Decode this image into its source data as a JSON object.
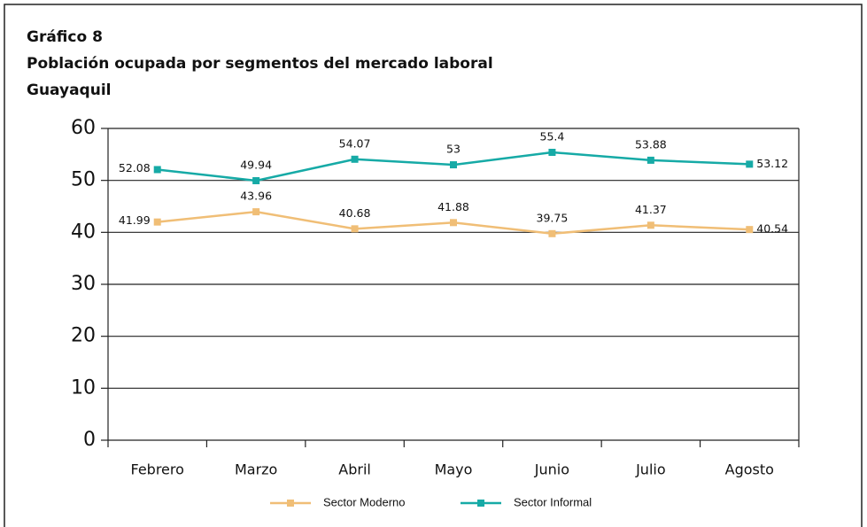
{
  "chart_data": {
    "type": "line",
    "title": [
      "Gráfico 8",
      "Población ocupada por segmentos del mercado laboral",
      "Guayaquil"
    ],
    "categories": [
      "Febrero",
      "Marzo",
      "Abril",
      "Mayo",
      "Junio",
      "Julio",
      "Agosto"
    ],
    "series": [
      {
        "name": "Sector Moderno",
        "color": "#f0be76",
        "values": [
          41.99,
          43.96,
          40.68,
          41.88,
          39.75,
          41.37,
          40.54
        ]
      },
      {
        "name": "Sector Informal",
        "color": "#16aaa6",
        "values": [
          52.08,
          49.94,
          54.07,
          53,
          55.4,
          53.88,
          53.12
        ]
      }
    ],
    "ylim": [
      0,
      60
    ],
    "yticks": [
      0,
      10,
      20,
      30,
      40,
      50,
      60
    ],
    "grid": true,
    "legend": "bottom"
  }
}
